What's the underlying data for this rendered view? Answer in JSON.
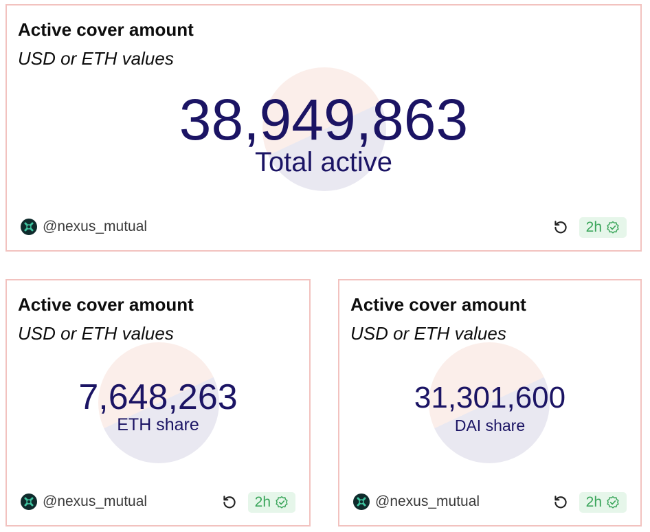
{
  "colors": {
    "accent_text": "#1b1464",
    "card_border": "#f2c2bf",
    "pie_share_a": "#fbeeea",
    "pie_share_b": "#e9e8f1",
    "badge_bg": "#e6f6ea",
    "badge_text": "#3aa55a"
  },
  "cards": [
    {
      "title": "Active cover amount",
      "subtitle": "USD or ETH values",
      "value": "38,949,863",
      "caption": "Total active",
      "author": "@nexus_mutual",
      "freshness": "2h",
      "icons": [
        "nexus-avatar-icon",
        "refresh-icon",
        "check-badge-icon"
      ]
    },
    {
      "title": "Active cover amount",
      "subtitle": "USD or ETH values",
      "value": "7,648,263",
      "caption": "ETH share",
      "author": "@nexus_mutual",
      "freshness": "2h",
      "icons": [
        "nexus-avatar-icon",
        "refresh-icon",
        "check-badge-icon"
      ]
    },
    {
      "title": "Active cover amount",
      "subtitle": "USD or ETH values",
      "value": "31,301,600",
      "caption": "DAI share",
      "author": "@nexus_mutual",
      "freshness": "2h",
      "icons": [
        "nexus-avatar-icon",
        "refresh-icon",
        "check-badge-icon"
      ]
    }
  ]
}
